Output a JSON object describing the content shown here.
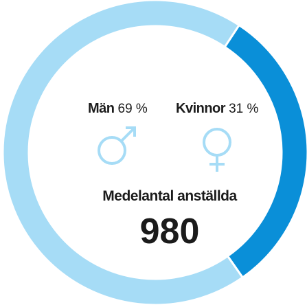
{
  "chart_data": {
    "type": "donut",
    "series": [
      {
        "name": "Män",
        "color": "#a6dcf6",
        "values": [
          69
        ],
        "value_labels": [
          "69 %"
        ]
      },
      {
        "name": "Kvinnor",
        "color": "#0a8fd8",
        "values": [
          31
        ],
        "value_labels": [
          "31 %"
        ]
      }
    ],
    "center_label": "Medelantal anställda",
    "center_value": 980
  }
}
